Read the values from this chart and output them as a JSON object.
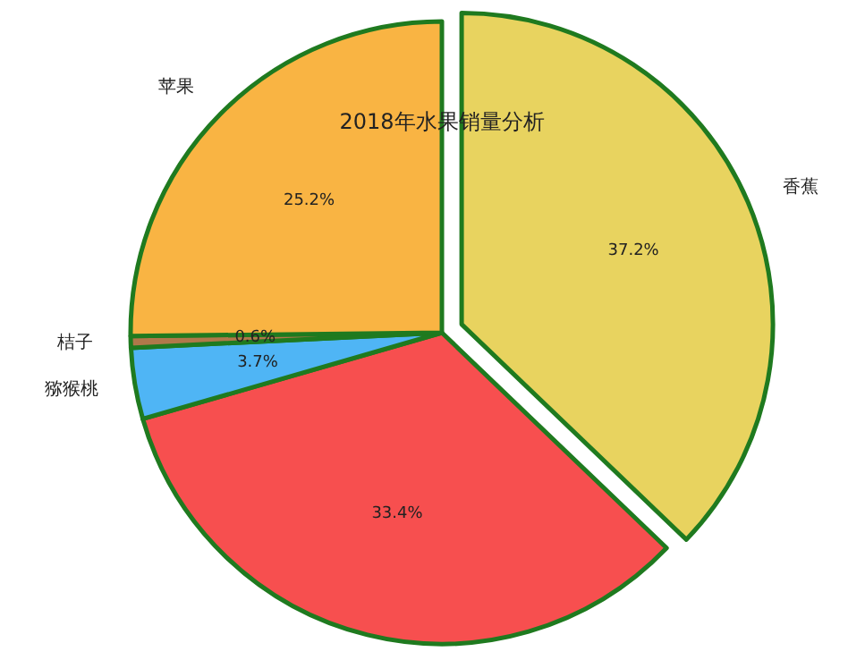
{
  "chart_data": {
    "type": "pie",
    "title": "2018年水果销量分析",
    "categories": [
      "香蕉",
      null,
      "猕猴桃",
      "桔子",
      "苹果"
    ],
    "values": [
      37.2,
      33.4,
      3.7,
      0.6,
      25.2
    ],
    "value_labels": [
      "37.2%",
      "33.4%",
      "3.7%",
      "0.6%",
      "25.2%"
    ],
    "colors": [
      "#e8d35f",
      "#f74f4f",
      "#4fb5f5",
      "#b0784a",
      "#f9b443"
    ]
  }
}
